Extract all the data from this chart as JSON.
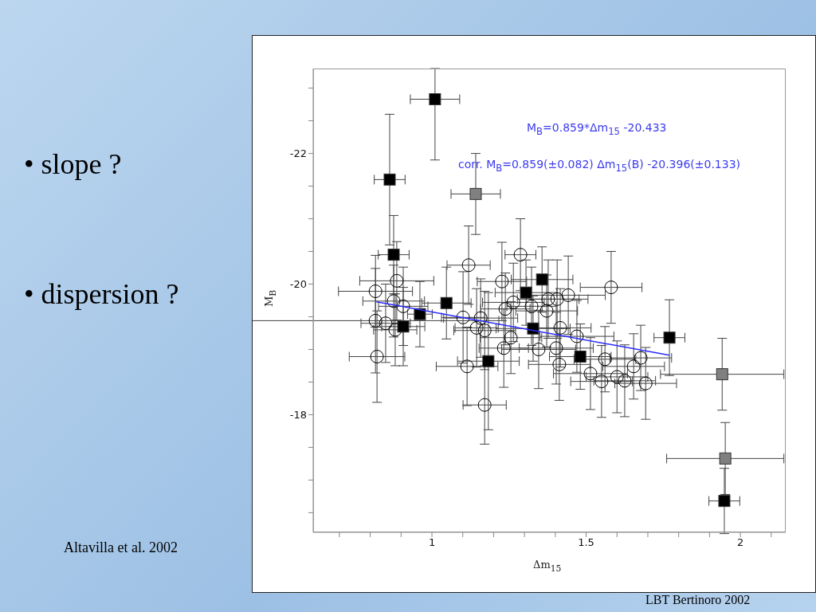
{
  "chart_data": {
    "type": "scatter",
    "xlabel": "Δm$_{15}$",
    "ylabel": "M$_{B}$",
    "xlim": [
      0.615,
      2.147
    ],
    "xticks": [
      {
        "value": 0.7,
        "label": null
      },
      {
        "value": 0.8,
        "label": null
      },
      {
        "value": 0.9,
        "label": null
      },
      1,
      {
        "value": 1.1,
        "label": null
      },
      {
        "value": 1.2,
        "label": null
      },
      {
        "value": 1.3,
        "label": null
      },
      {
        "value": 1.4,
        "label": null
      },
      1.5,
      {
        "value": 1.6,
        "label": null
      },
      {
        "value": 1.7,
        "label": null
      },
      {
        "value": 1.8,
        "label": null
      },
      {
        "value": 1.9,
        "label": null
      },
      2,
      {
        "value": 2.1,
        "label": null
      }
    ],
    "ylim": [
      -16.2,
      -23.3
    ],
    "yticks": [
      {
        "value": -23,
        "label": null
      },
      {
        "value": -22.5,
        "label": null
      },
      -22,
      {
        "value": -21.5,
        "label": null
      },
      {
        "value": -21,
        "label": null
      },
      {
        "value": -20.5,
        "label": null
      },
      -20,
      {
        "value": -19.5,
        "label": null
      },
      {
        "value": -19,
        "label": null
      },
      {
        "value": -18.5,
        "label": null
      },
      -18,
      {
        "value": -17.5,
        "label": null
      },
      {
        "value": -17,
        "label": null
      },
      {
        "value": -16.5,
        "label": null
      }
    ],
    "series": [
      {
        "color": "#000000",
        "marker": "circle",
        "x": [
          0.817,
          0.886,
          0.817,
          0.822,
          0.85,
          0.876,
          0.907,
          0.881,
          1.119,
          1.101,
          1.114,
          1.158,
          1.145,
          1.171,
          1.171,
          1.227,
          1.287,
          1.238,
          1.264,
          1.233,
          1.323,
          1.346,
          1.256,
          1.581,
          1.377,
          1.406,
          1.442,
          1.372,
          1.416,
          1.47,
          1.403,
          1.413,
          1.561,
          1.514,
          1.55,
          1.6,
          1.625,
          1.654,
          1.677,
          1.693
        ],
        "values": [
          -19.89,
          -20.05,
          -19.44,
          -18.89,
          -19.4,
          -19.74,
          -19.66,
          -19.3,
          -20.29,
          -19.49,
          -18.74,
          -19.48,
          -19.33,
          -19.29,
          -18.15,
          -20.04,
          -20.45,
          -19.62,
          -19.72,
          -19.02,
          -19.66,
          -19.0,
          -19.18,
          -19.95,
          -19.77,
          -19.77,
          -19.83,
          -19.59,
          -19.33,
          -19.2,
          -19.02,
          -18.77,
          -18.85,
          -18.63,
          -18.51,
          -18.58,
          -18.52,
          -18.74,
          -18.87,
          -18.48
        ],
        "errors": [
          0.55,
          0.6,
          0.8,
          0.7,
          0.6,
          0.55,
          0.6,
          0.55,
          0.6,
          0.7,
          0.6,
          0.6,
          0.6,
          0.6,
          0.6,
          0.6,
          0.55,
          0.55,
          0.6,
          0.6,
          0.6,
          0.6,
          0.55,
          0.55,
          0.6,
          0.6,
          0.6,
          0.55,
          0.6,
          0.55,
          0.55,
          0.55,
          0.5,
          0.55,
          0.55,
          0.55,
          0.55,
          0.5,
          0.5,
          0.55
        ],
        "xerrors": [
          0.12,
          0.12,
          0.4,
          0.09,
          0.08,
          0.1,
          0.08,
          0.07,
          0.07,
          0.07,
          0.1,
          0.12,
          0.07,
          0.1,
          0.07,
          0.08,
          0.05,
          0.08,
          0.1,
          0.08,
          0.08,
          0.12,
          0.1,
          0.1,
          0.1,
          0.1,
          0.12,
          0.1,
          0.1,
          0.12,
          0.12,
          0.1,
          0.1,
          0.12,
          0.1,
          0.1,
          0.1,
          0.1,
          0.1,
          0.1
        ]
      },
      {
        "color": "#808080",
        "marker": "square",
        "x": [
          1.142,
          1.941,
          1.951
        ],
        "values": [
          -21.38,
          -18.62,
          -17.33
        ],
        "errors": [
          0.62,
          0.55,
          0.55
        ],
        "xerrors": [
          0.08,
          0.2,
          0.19
        ]
      },
      {
        "color": "#000000",
        "marker": "square",
        "x": [
          1.01,
          0.863,
          0.876,
          1.047,
          0.961,
          0.907,
          1.183,
          1.357,
          1.305,
          1.328,
          1.481,
          1.77,
          1.948
        ],
        "values": [
          -22.83,
          -21.6,
          -20.45,
          -19.71,
          -19.54,
          -19.35,
          -18.82,
          -20.07,
          -19.87,
          -19.32,
          -18.89,
          -19.18,
          -16.68
        ],
        "errors": [
          [
            -23.3,
            -21.9
          ],
          1.0,
          0.6,
          0.55,
          0.5,
          0.6,
          1.05,
          0.5,
          0.5,
          0.5,
          0.5,
          0.58,
          0.5
        ],
        "xerrors": [
          0.08,
          0.05,
          0.05,
          0.08,
          0.04,
          0.07,
          0.1,
          0.1,
          0.1,
          0.12,
          0.1,
          0.05,
          0.05
        ]
      },
      {
        "type": "line",
        "color": "#2a2aff",
        "marker": "none",
        "x": [
          0.82,
          1.77
        ],
        "values": [
          -19.73,
          -18.91
        ]
      }
    ],
    "annotations": [
      "M$_{B}$=0.859*Δm$_{15}$ -20.433",
      "corr.  M$_{B}$=0.859(±0.082) Δm$_{15}$(B) -20.396(±0.133)",
      "• slope ?",
      "• dispersion ?",
      "Altavilla et al. 2002",
      "LBT Bertinoro 2002"
    ]
  }
}
